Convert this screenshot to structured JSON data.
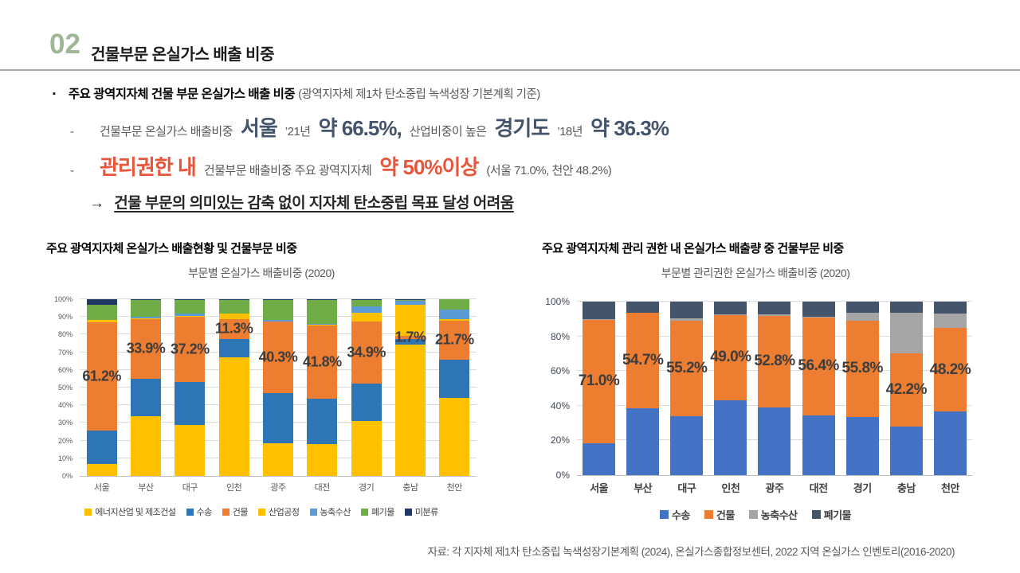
{
  "slide": {
    "section_number": "02",
    "title": "건물부문 온실가스 배출 비중",
    "bullet_marker": "▪",
    "dash": "-",
    "bullet": {
      "bold": "주요 광역지자체 건물 부문 온실가스 배출 비중",
      "note": "(광역지자체 제1차 탄소중립 녹색성장 기본계획 기준)"
    },
    "line1": {
      "t1": "건물부문 온실가스 배출비중",
      "b1": "서울",
      "t2": "’21년",
      "b2": "약 66.5%,",
      "t3": "산업비중이 높은",
      "b3": "경기도",
      "t4": "’18년",
      "b4": "약 36.3%"
    },
    "line2": {
      "b1": "관리권한 내",
      "t1": "건물부문 배출비중 주요 광역지자체",
      "b2": "약 50%이상",
      "t2": "(서울 71.0%, 천안 48.2%)"
    },
    "arrow": "→",
    "arrow_text": "건물 부문의 의미있는 감축 없이 지자체 탄소중립 목표 달성 어려움",
    "footer": "자료: 각 지자체 제1차 탄소중립 녹색성장기본계획 (2024), 온실가스종합정보센터, 2022 지역 온실가스 인벤토리(2016-2020)"
  },
  "colors": {
    "section_green": "#9DB797",
    "accent_dark_slate": "#44546A",
    "accent_red": "#E8553A",
    "body_gray": "#595959"
  },
  "chart_data": [
    {
      "type": "bar",
      "stacked": true,
      "percent": true,
      "heading": "주요 광역지자체 온실가스 배출현황 및 건물부문 비중",
      "title": "부문별 온실가스 배출비중 (2020)",
      "categories": [
        "서울",
        "부산",
        "대구",
        "인천",
        "광주",
        "대전",
        "경기",
        "충남",
        "천안"
      ],
      "yticks": [
        "0%",
        "10%",
        "20%",
        "30%",
        "40%",
        "50%",
        "60%",
        "70%",
        "80%",
        "90%",
        "100%"
      ],
      "ylim": [
        0,
        100
      ],
      "grid": true,
      "legend_position": "bottom",
      "series": [
        {
          "name": "에너지산업 및 제조건설",
          "color": "#FFC000",
          "values": [
            6.8,
            34.0,
            29.0,
            67.2,
            18.5,
            18.0,
            31.0,
            74.5,
            44.0
          ]
        },
        {
          "name": "수송",
          "color": "#2E75B6",
          "values": [
            19.0,
            21.0,
            24.0,
            10.3,
            28.5,
            25.5,
            21.3,
            3.0,
            22.0
          ]
        },
        {
          "name": "건물",
          "color": "#ED7D31",
          "values": [
            61.2,
            33.9,
            37.2,
            11.3,
            40.3,
            41.8,
            34.9,
            1.7,
            21.7
          ]
        },
        {
          "name": "산업공정",
          "color": "#FFC000",
          "values": [
            1.3,
            0.3,
            0.3,
            2.9,
            0.2,
            0.4,
            5.1,
            17.6,
            1.1
          ]
        },
        {
          "name": "농축수산",
          "color": "#5B9BD5",
          "values": [
            0.2,
            1.0,
            1.3,
            0.3,
            0.7,
            0.3,
            3.7,
            2.5,
            5.2
          ]
        },
        {
          "name": "폐기물",
          "color": "#70AD47",
          "values": [
            8.5,
            9.3,
            7.7,
            7.4,
            11.5,
            13.5,
            3.5,
            0.4,
            6.0
          ]
        },
        {
          "name": "미분류",
          "color": "#1F3864",
          "values": [
            3.0,
            0.5,
            0.5,
            0.6,
            0.3,
            0.5,
            0.5,
            0.3,
            0.0
          ]
        }
      ],
      "data_labels": {
        "series": "건물",
        "values": [
          "61.2%",
          "33.9%",
          "37.2%",
          "11.3%",
          "40.3%",
          "41.8%",
          "34.9%",
          "1.7%",
          "21.7%"
        ]
      }
    },
    {
      "type": "bar",
      "stacked": true,
      "percent": true,
      "heading": "주요 광역지자체 관리 권한 내 온실가스 배출량 중 건물부문 비중",
      "title": "부문별 관리권한 온실가스 배출비중 (2020)",
      "categories": [
        "서울",
        "부산",
        "대구",
        "인천",
        "광주",
        "대전",
        "경기",
        "충남",
        "천안"
      ],
      "yticks": [
        "0%",
        "20%",
        "40%",
        "60%",
        "80%",
        "100%"
      ],
      "ylim": [
        0,
        100
      ],
      "grid": true,
      "legend_position": "bottom",
      "series": [
        {
          "name": "수송",
          "color": "#4472C4",
          "values": [
            18.5,
            38.7,
            33.8,
            43.2,
            39.0,
            34.5,
            33.4,
            28.0,
            36.5
          ]
        },
        {
          "name": "건물",
          "color": "#ED7D31",
          "values": [
            71.0,
            54.7,
            55.2,
            49.0,
            52.8,
            56.4,
            55.8,
            42.2,
            48.2
          ]
        },
        {
          "name": "농축수산",
          "color": "#A5A5A5",
          "values": [
            0.3,
            0.2,
            1.5,
            0.5,
            0.7,
            0.3,
            4.6,
            23.3,
            8.6
          ]
        },
        {
          "name": "폐기물",
          "color": "#44546A",
          "values": [
            10.2,
            6.4,
            9.5,
            7.3,
            7.5,
            8.8,
            6.2,
            6.5,
            6.7
          ]
        }
      ],
      "data_labels": {
        "series": "건물",
        "values": [
          "71.0%",
          "54.7%",
          "55.2%",
          "49.0%",
          "52.8%",
          "56.4%",
          "55.8%",
          "42.2%",
          "48.2%"
        ]
      }
    }
  ]
}
